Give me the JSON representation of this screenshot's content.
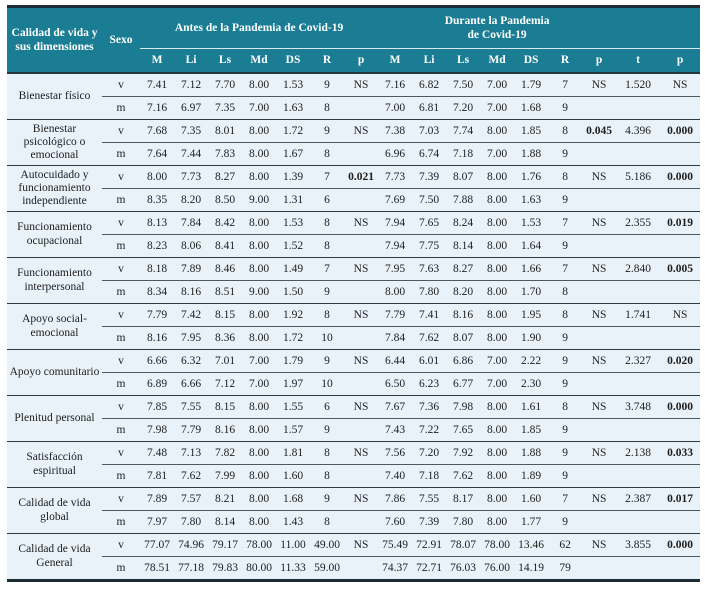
{
  "table": {
    "header": {
      "dimension": "Calidad de vida y sus dimensiones",
      "sexo": "Sexo",
      "group_antes": "Antes de la Pandemia de Covid-19",
      "group_durante": "Durante la Pandemia\nde Covid-19"
    },
    "sub_headers": [
      "M",
      "Li",
      "Ls",
      "Md",
      "DS",
      "R",
      "p",
      "M",
      "Li",
      "Ls",
      "Md",
      "DS",
      "R",
      "p",
      "t",
      "p"
    ],
    "groups": [
      {
        "dimension": "Bienestar físico",
        "rows": [
          {
            "sexo": "v",
            "cells": [
              "7.41",
              "7.12",
              "7.70",
              "8.00",
              "1.53",
              "9",
              "NS",
              "7.16",
              "6.82",
              "7.50",
              "7.00",
              "1.79",
              "7",
              "NS",
              "1.520",
              "NS"
            ],
            "bold": []
          },
          {
            "sexo": "m",
            "cells": [
              "7.16",
              "6.97",
              "7.35",
              "7.00",
              "1.63",
              "8",
              "",
              "7.00",
              "6.81",
              "7.20",
              "7.00",
              "1.68",
              "9",
              "",
              "",
              ""
            ],
            "bold": []
          }
        ]
      },
      {
        "dimension": "Bienestar psicológico o emocional",
        "rows": [
          {
            "sexo": "v",
            "cells": [
              "7.68",
              "7.35",
              "8.01",
              "8.00",
              "1.72",
              "9",
              "NS",
              "7.38",
              "7.03",
              "7.74",
              "8.00",
              "1.85",
              "8",
              "0.045",
              "4.396",
              "0.000"
            ],
            "bold": [
              13,
              15
            ]
          },
          {
            "sexo": "m",
            "cells": [
              "7.64",
              "7.44",
              "7.83",
              "8.00",
              "1.67",
              "8",
              "",
              "6.96",
              "6.74",
              "7.18",
              "7.00",
              "1.88",
              "9",
              "",
              "",
              ""
            ],
            "bold": []
          }
        ]
      },
      {
        "dimension": "Autocuidado y funcionamiento independiente",
        "rows": [
          {
            "sexo": "v",
            "cells": [
              "8.00",
              "7.73",
              "8.27",
              "8.00",
              "1.39",
              "7",
              "0.021",
              "7.73",
              "7.39",
              "8.07",
              "8.00",
              "1.76",
              "8",
              "NS",
              "5.186",
              "0.000"
            ],
            "bold": [
              6,
              15
            ]
          },
          {
            "sexo": "m",
            "cells": [
              "8.35",
              "8.20",
              "8.50",
              "9.00",
              "1.31",
              "6",
              "",
              "7.69",
              "7.50",
              "7.88",
              "8.00",
              "1.63",
              "9",
              "",
              "",
              ""
            ],
            "bold": []
          }
        ]
      },
      {
        "dimension": "Funcionamiento ocupacional",
        "rows": [
          {
            "sexo": "v",
            "cells": [
              "8.13",
              "7.84",
              "8.42",
              "8.00",
              "1.53",
              "8",
              "NS",
              "7.94",
              "7.65",
              "8.24",
              "8.00",
              "1.53",
              "7",
              "NS",
              "2.355",
              "0.019"
            ],
            "bold": [
              15
            ]
          },
          {
            "sexo": "m",
            "cells": [
              "8.23",
              "8.06",
              "8.41",
              "8.00",
              "1.52",
              "8",
              "",
              "7.94",
              "7.75",
              "8.14",
              "8.00",
              "1.64",
              "9",
              "",
              "",
              ""
            ],
            "bold": []
          }
        ]
      },
      {
        "dimension": "Funcionamiento interpersonal",
        "rows": [
          {
            "sexo": "v",
            "cells": [
              "8.18",
              "7.89",
              "8.46",
              "8.00",
              "1.49",
              "7",
              "NS",
              "7.95",
              "7.63",
              "8.27",
              "8.00",
              "1.66",
              "7",
              "NS",
              "2.840",
              "0.005"
            ],
            "bold": [
              15
            ]
          },
          {
            "sexo": "m",
            "cells": [
              "8.34",
              "8.16",
              "8.51",
              "9.00",
              "1.50",
              "9",
              "",
              "8.00",
              "7.80",
              "8.20",
              "8.00",
              "1.70",
              "8",
              "",
              "",
              ""
            ],
            "bold": []
          }
        ]
      },
      {
        "dimension": "Apoyo social-emocional",
        "rows": [
          {
            "sexo": "v",
            "cells": [
              "7.79",
              "7.42",
              "8.15",
              "8.00",
              "1.92",
              "8",
              "NS",
              "7.79",
              "7.41",
              "8.16",
              "8.00",
              "1.95",
              "8",
              "NS",
              "1.741",
              "NS"
            ],
            "bold": []
          },
          {
            "sexo": "m",
            "cells": [
              "8.16",
              "7.95",
              "8.36",
              "8.00",
              "1.72",
              "10",
              "",
              "7.84",
              "7.62",
              "8.07",
              "8.00",
              "1.90",
              "9",
              "",
              "",
              ""
            ],
            "bold": []
          }
        ]
      },
      {
        "dimension": "Apoyo comunitario",
        "rows": [
          {
            "sexo": "v",
            "cells": [
              "6.66",
              "6.32",
              "7.01",
              "7.00",
              "1.79",
              "9",
              "NS",
              "6.44",
              "6.01",
              "6.86",
              "7.00",
              "2.22",
              "9",
              "NS",
              "2.327",
              "0.020"
            ],
            "bold": [
              15
            ]
          },
          {
            "sexo": "m",
            "cells": [
              "6.89",
              "6.66",
              "7.12",
              "7.00",
              "1.97",
              "10",
              "",
              "6.50",
              "6.23",
              "6.77",
              "7.00",
              "2.30",
              "9",
              "",
              "",
              ""
            ],
            "bold": []
          }
        ]
      },
      {
        "dimension": "Plenitud personal",
        "rows": [
          {
            "sexo": "v",
            "cells": [
              "7.85",
              "7.55",
              "8.15",
              "8.00",
              "1.55",
              "6",
              "NS",
              "7.67",
              "7.36",
              "7.98",
              "8.00",
              "1.61",
              "8",
              "NS",
              "3.748",
              "0.000"
            ],
            "bold": [
              15
            ]
          },
          {
            "sexo": "m",
            "cells": [
              "7.98",
              "7.79",
              "8.16",
              "8.00",
              "1.57",
              "9",
              "",
              "7.43",
              "7.22",
              "7.65",
              "8.00",
              "1.85",
              "9",
              "",
              "",
              ""
            ],
            "bold": []
          }
        ]
      },
      {
        "dimension": "Satisfacción espiritual",
        "rows": [
          {
            "sexo": "v",
            "cells": [
              "7.48",
              "7.13",
              "7.82",
              "8.00",
              "1.81",
              "8",
              "NS",
              "7.56",
              "7.20",
              "7.92",
              "8.00",
              "1.88",
              "9",
              "NS",
              "2.138",
              "0.033"
            ],
            "bold": [
              15
            ]
          },
          {
            "sexo": "m",
            "cells": [
              "7.81",
              "7.62",
              "7.99",
              "8.00",
              "1.60",
              "8",
              "",
              "7.40",
              "7.18",
              "7.62",
              "8.00",
              "1.89",
              "9",
              "",
              "",
              ""
            ],
            "bold": []
          }
        ]
      },
      {
        "dimension": "Calidad de vida global",
        "rows": [
          {
            "sexo": "v",
            "cells": [
              "7.89",
              "7.57",
              "8.21",
              "8.00",
              "1.68",
              "9",
              "NS",
              "7.86",
              "7.55",
              "8.17",
              "8.00",
              "1.60",
              "7",
              "NS",
              "2.387",
              "0.017"
            ],
            "bold": [
              15
            ]
          },
          {
            "sexo": "m",
            "cells": [
              "7.97",
              "7.80",
              "8.14",
              "8.00",
              "1.43",
              "8",
              "",
              "7.60",
              "7.39",
              "7.80",
              "8.00",
              "1.77",
              "9",
              "",
              "",
              ""
            ],
            "bold": []
          }
        ]
      },
      {
        "dimension": "Calidad de vida General",
        "rows": [
          {
            "sexo": "v",
            "cells": [
              "77.07",
              "74.96",
              "79.17",
              "78.00",
              "11.00",
              "49.00",
              "NS",
              "75.49",
              "72.91",
              "78.07",
              "78.00",
              "13.46",
              "62",
              "NS",
              "3.855",
              "0.000"
            ],
            "bold": [
              15
            ]
          },
          {
            "sexo": "m",
            "cells": [
              "78.51",
              "77.18",
              "79.83",
              "80.00",
              "11.33",
              "59.00",
              "",
              "74.37",
              "72.71",
              "76.03",
              "76.00",
              "14.19",
              "79",
              "",
              "",
              ""
            ],
            "bold": []
          }
        ]
      }
    ]
  }
}
